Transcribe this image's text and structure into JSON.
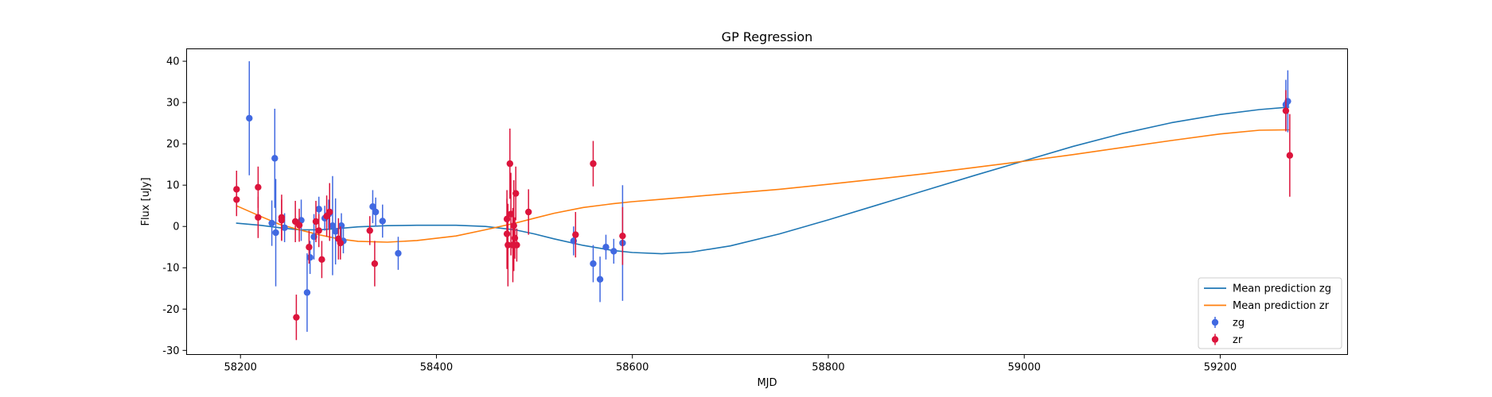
{
  "chart_data": {
    "type": "scatter",
    "title": "GP Regression",
    "xlabel": "MJD",
    "ylabel": "Flux [uJy]",
    "xlim": [
      58145,
      59330
    ],
    "ylim": [
      -31,
      43
    ],
    "x_ticks": [
      58200,
      58400,
      58600,
      58800,
      59000,
      59200
    ],
    "y_ticks": [
      -30,
      -20,
      -10,
      0,
      10,
      20,
      30,
      40
    ],
    "grid": false,
    "legend_position": "lower-right",
    "series": [
      {
        "name": "zg",
        "kind": "errorbar",
        "color": "#4169e1",
        "points": [
          {
            "x": 58209,
            "y": 26.2,
            "err": 13.8
          },
          {
            "x": 58232,
            "y": 0.8,
            "err": 5.5
          },
          {
            "x": 58235,
            "y": 16.5,
            "err": 12.0
          },
          {
            "x": 58236,
            "y": -1.5,
            "err": 13.0
          },
          {
            "x": 58245,
            "y": -0.3,
            "err": 3.5
          },
          {
            "x": 58262,
            "y": 1.5,
            "err": 5.0
          },
          {
            "x": 58268,
            "y": -16.0,
            "err": 9.5
          },
          {
            "x": 58271,
            "y": -7.5,
            "err": 4.0
          },
          {
            "x": 58275,
            "y": -2.5,
            "err": 5.5
          },
          {
            "x": 58280,
            "y": 4.2,
            "err": 3.0
          },
          {
            "x": 58286,
            "y": 2.0,
            "err": 3.0
          },
          {
            "x": 58290,
            "y": 3.0,
            "err": 3.5
          },
          {
            "x": 58294,
            "y": 0.2,
            "err": 12.0
          },
          {
            "x": 58297,
            "y": -1.2,
            "err": 8.0
          },
          {
            "x": 58303,
            "y": 0.2,
            "err": 3.0
          },
          {
            "x": 58305,
            "y": -3.5,
            "err": 3.0
          },
          {
            "x": 58335,
            "y": 4.8,
            "err": 4.0
          },
          {
            "x": 58338,
            "y": 3.5,
            "err": 3.5
          },
          {
            "x": 58345,
            "y": 1.3,
            "err": 4.0
          },
          {
            "x": 58361,
            "y": -6.5,
            "err": 4.0
          },
          {
            "x": 58540,
            "y": -3.5,
            "err": 3.5
          },
          {
            "x": 58560,
            "y": -9.0,
            "err": 4.5
          },
          {
            "x": 58567,
            "y": -12.8,
            "err": 5.5
          },
          {
            "x": 58573,
            "y": -5.0,
            "err": 3.0
          },
          {
            "x": 58581,
            "y": -6.0,
            "err": 3.0
          },
          {
            "x": 58590,
            "y": -4.0,
            "err": 14.0
          },
          {
            "x": 59267,
            "y": 29.5,
            "err": 6.0
          },
          {
            "x": 59269,
            "y": 30.3,
            "err": 7.5
          }
        ]
      },
      {
        "name": "zr",
        "kind": "errorbar",
        "color": "#dc143c",
        "points": [
          {
            "x": 58196,
            "y": 9.0,
            "err": 4.5
          },
          {
            "x": 58196,
            "y": 6.5,
            "err": 4.0
          },
          {
            "x": 58218,
            "y": 9.5,
            "err": 5.0
          },
          {
            "x": 58218,
            "y": 2.2,
            "err": 5.0
          },
          {
            "x": 58242,
            "y": 2.2,
            "err": 5.5
          },
          {
            "x": 58242,
            "y": 1.5,
            "err": 5.0
          },
          {
            "x": 58256,
            "y": 1.2,
            "err": 5.0
          },
          {
            "x": 58257,
            "y": -22.0,
            "err": 5.5
          },
          {
            "x": 58260,
            "y": 0.3,
            "err": 4.0
          },
          {
            "x": 58270,
            "y": -5.0,
            "err": 4.0
          },
          {
            "x": 58277,
            "y": 1.2,
            "err": 5.0
          },
          {
            "x": 58280,
            "y": -1.0,
            "err": 4.0
          },
          {
            "x": 58283,
            "y": -8.0,
            "err": 4.5
          },
          {
            "x": 58288,
            "y": 2.5,
            "err": 5.0
          },
          {
            "x": 58291,
            "y": 3.5,
            "err": 7.0
          },
          {
            "x": 58300,
            "y": -3.0,
            "err": 5.0
          },
          {
            "x": 58302,
            "y": -4.0,
            "err": 4.0
          },
          {
            "x": 58332,
            "y": -1.0,
            "err": 3.5
          },
          {
            "x": 58337,
            "y": -9.0,
            "err": 5.5
          },
          {
            "x": 58472,
            "y": 1.8,
            "err": 7.0
          },
          {
            "x": 58472,
            "y": -1.8,
            "err": 8.5
          },
          {
            "x": 58473,
            "y": -4.5,
            "err": 10.0
          },
          {
            "x": 58475,
            "y": 15.2,
            "err": 8.5
          },
          {
            "x": 58476,
            "y": 3.0,
            "err": 10.0
          },
          {
            "x": 58478,
            "y": -4.5,
            "err": 9.0
          },
          {
            "x": 58479,
            "y": 0.2,
            "err": 11.0
          },
          {
            "x": 58480,
            "y": -2.8,
            "err": 5.0
          },
          {
            "x": 58481,
            "y": 8.0,
            "err": 6.5
          },
          {
            "x": 58482,
            "y": -4.5,
            "err": 4.0
          },
          {
            "x": 58494,
            "y": 3.5,
            "err": 5.5
          },
          {
            "x": 58542,
            "y": -2.0,
            "err": 5.5
          },
          {
            "x": 58560,
            "y": 15.2,
            "err": 5.5
          },
          {
            "x": 58590,
            "y": -2.3,
            "err": 7.0
          },
          {
            "x": 59267,
            "y": 28.0,
            "err": 5.0
          },
          {
            "x": 59271,
            "y": 17.2,
            "err": 10.0
          }
        ]
      },
      {
        "name": "Mean prediction zg",
        "kind": "line",
        "color": "#1f77b4",
        "x": [
          58196,
          58220,
          58240,
          58260,
          58280,
          58300,
          58320,
          58350,
          58380,
          58420,
          58450,
          58480,
          58500,
          58520,
          58550,
          58580,
          58600,
          58630,
          58660,
          58700,
          58750,
          58800,
          58850,
          58900,
          58950,
          59000,
          59050,
          59100,
          59150,
          59200,
          59240,
          59270
        ],
        "y": [
          0.8,
          0.3,
          -0.3,
          -0.8,
          -0.8,
          -0.5,
          -0.1,
          0.2,
          0.3,
          0.3,
          0.0,
          -0.8,
          -1.8,
          -3.0,
          -4.6,
          -5.8,
          -6.3,
          -6.6,
          -6.2,
          -4.7,
          -1.8,
          1.6,
          5.2,
          8.8,
          12.4,
          15.9,
          19.4,
          22.5,
          25.1,
          27.1,
          28.3,
          28.9
        ]
      },
      {
        "name": "Mean prediction zr",
        "kind": "line",
        "color": "#ff7f0e",
        "x": [
          58196,
          58220,
          58240,
          58260,
          58280,
          58300,
          58320,
          58350,
          58380,
          58420,
          58450,
          58480,
          58500,
          58520,
          58550,
          58580,
          58600,
          58630,
          58660,
          58700,
          58750,
          58800,
          58850,
          58900,
          58950,
          59000,
          59050,
          59100,
          59150,
          59200,
          59240,
          59270
        ],
        "y": [
          5.0,
          2.5,
          0.5,
          -0.8,
          -2.0,
          -3.0,
          -3.6,
          -3.8,
          -3.4,
          -2.3,
          -0.8,
          0.8,
          2.0,
          3.2,
          4.6,
          5.5,
          6.0,
          6.6,
          7.2,
          8.0,
          9.0,
          10.2,
          11.5,
          12.8,
          14.3,
          15.8,
          17.4,
          19.1,
          20.8,
          22.4,
          23.3,
          23.4
        ]
      }
    ],
    "legend": [
      {
        "label": "Mean prediction zg",
        "symbol": "line",
        "color": "#1f77b4"
      },
      {
        "label": "Mean prediction zr",
        "symbol": "line",
        "color": "#ff7f0e"
      },
      {
        "label": "zg",
        "symbol": "errorbar",
        "color": "#4169e1"
      },
      {
        "label": "zr",
        "symbol": "errorbar",
        "color": "#dc143c"
      }
    ]
  }
}
